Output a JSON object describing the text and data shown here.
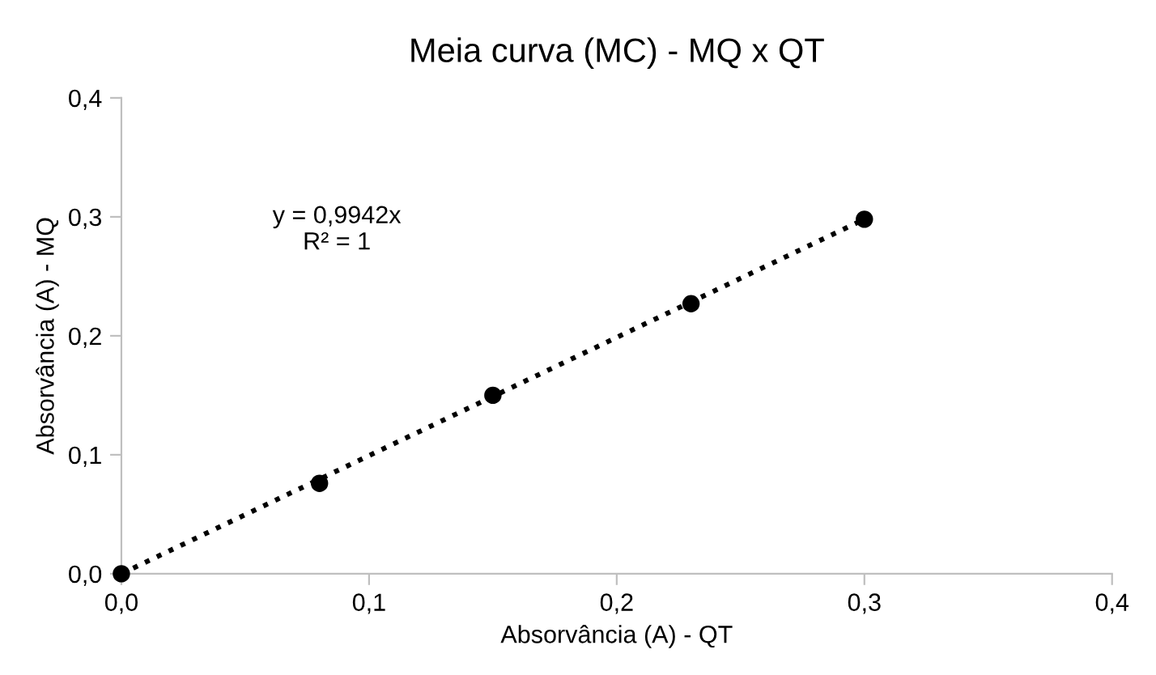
{
  "chart_data": {
    "type": "scatter",
    "title": "Meia curva (MC) - MQ x QT",
    "xlabel": "Absorvância (A) - QT",
    "ylabel": "Absorvância (A) - MQ",
    "series": [
      {
        "color": "#000000",
        "marker": "circle",
        "x": [
          0,
          0.08,
          0.15,
          0.23,
          0.3
        ],
        "values": [
          0,
          0.076,
          0.15,
          0.227,
          0.298
        ]
      },
      {
        "type": "line",
        "color": "#000000",
        "line_style": "dotted",
        "x": [
          0,
          0.3
        ],
        "values": [
          0,
          0.298
        ]
      }
    ],
    "xlim": [
      0,
      0.4
    ],
    "ylim": [
      0,
      0.4
    ],
    "xticks": [
      {
        "value": 0,
        "label": "0,0"
      },
      {
        "value": 0.1,
        "label": "0,1"
      },
      {
        "value": 0.2,
        "label": "0,2"
      },
      {
        "value": 0.3,
        "label": "0,3"
      },
      {
        "value": 0.4,
        "label": "0,4"
      }
    ],
    "yticks": [
      {
        "value": 0,
        "label": "0,0"
      },
      {
        "value": 0.1,
        "label": "0,1"
      },
      {
        "value": 0.2,
        "label": "0,2"
      },
      {
        "value": 0.3,
        "label": "0,3"
      },
      {
        "value": 0.4,
        "label": "0,4"
      }
    ],
    "annotations": [
      "y = 0,9942x",
      "R² = 1"
    ],
    "grid": false,
    "legend": false
  }
}
